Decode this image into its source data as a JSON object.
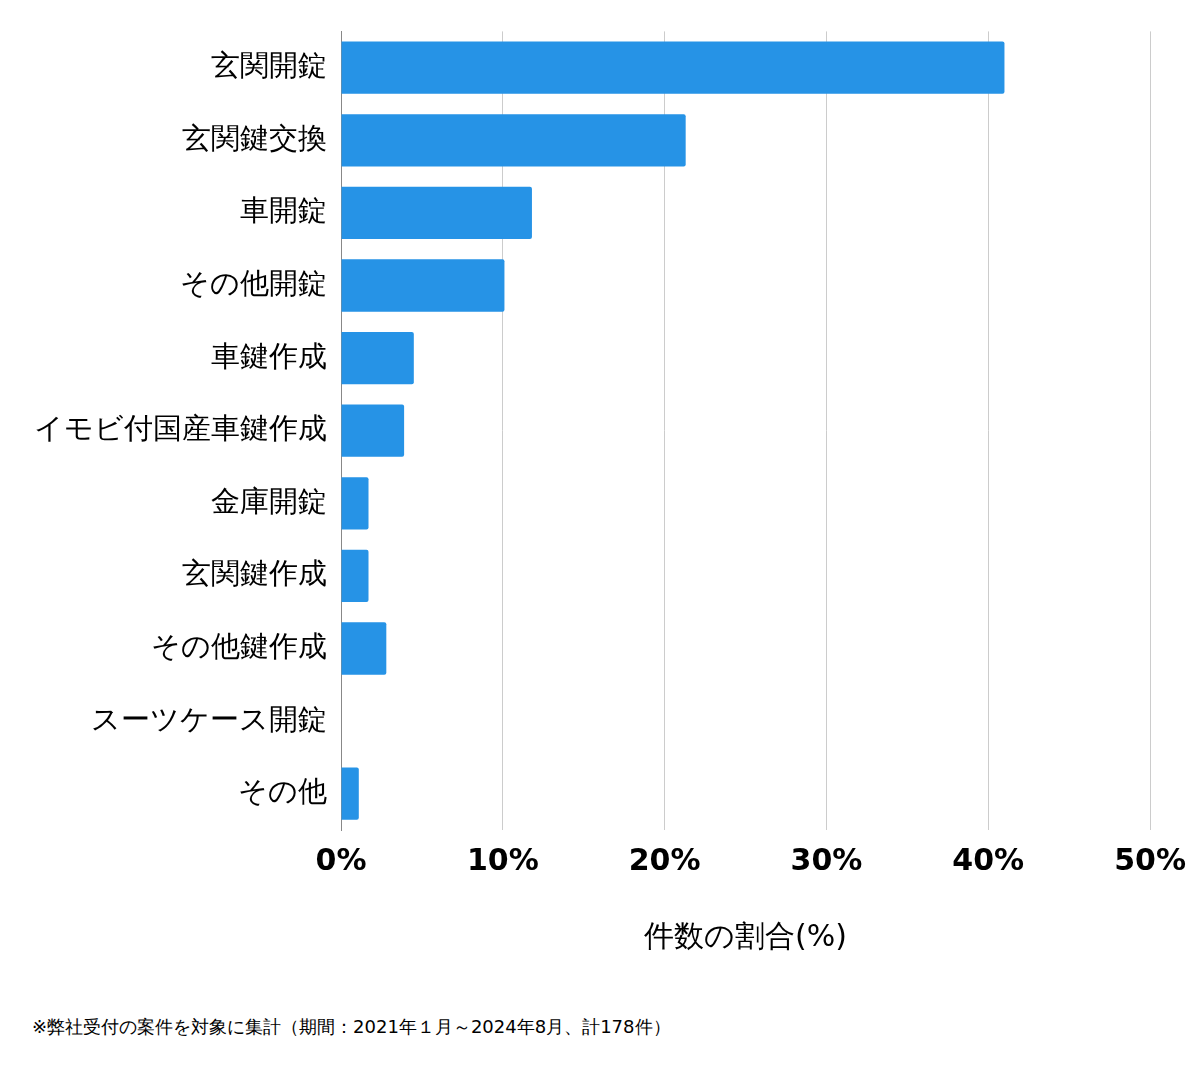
{
  "chart_data": {
    "type": "bar",
    "orientation": "horizontal",
    "categories": [
      "玄関開錠",
      "玄関鍵交換",
      "車開錠",
      "その他開錠",
      "車鍵作成",
      "イモビ付国産車鍵作成",
      "金庫開錠",
      "玄関鍵作成",
      "その他鍵作成",
      "スーツケース開錠",
      "その他"
    ],
    "values": [
      41.0,
      21.3,
      11.8,
      10.1,
      4.5,
      3.9,
      1.7,
      1.7,
      2.8,
      0,
      1.1
    ],
    "color": "#2693e6",
    "x_label": "件数の割合(%)",
    "xlim": [
      0,
      50
    ],
    "xticks": [
      {
        "value": 0,
        "label": "0%"
      },
      {
        "value": 10,
        "label": "10%"
      },
      {
        "value": 20,
        "label": "20%"
      },
      {
        "value": 30,
        "label": "30%"
      },
      {
        "value": 40,
        "label": "40%"
      },
      {
        "value": 50,
        "label": "50%"
      }
    ],
    "grid": true,
    "footnote": "※弊社受付の案件を対象に集計（期間：2021年１月～2024年8月、計178件）"
  }
}
